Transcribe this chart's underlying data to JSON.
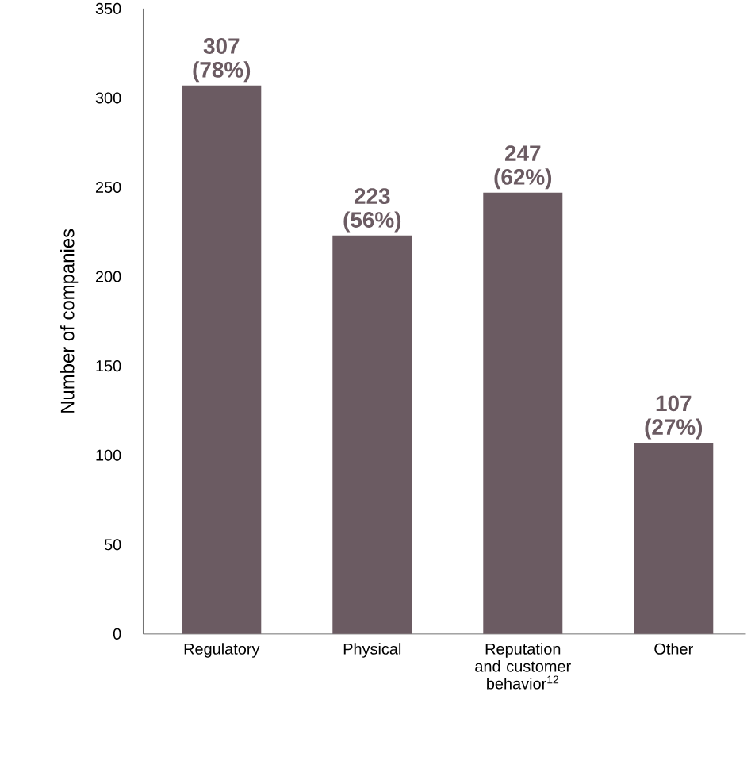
{
  "chart_data": {
    "type": "bar",
    "ylabel": "Number of companies",
    "categories": [
      "Regulatory",
      "Physical",
      "Reputation and customer behavior$^{12}$",
      "Other"
    ],
    "values": [
      307,
      223,
      247,
      107
    ],
    "value_labels": [
      "307 (78%)",
      "223 (56%)",
      "247 (62%)",
      "107 (27%)"
    ],
    "color": "#6b5b62",
    "ylim": [
      0,
      350
    ],
    "yticks": [
      0,
      50,
      100,
      150,
      200,
      250,
      300,
      350
    ]
  }
}
